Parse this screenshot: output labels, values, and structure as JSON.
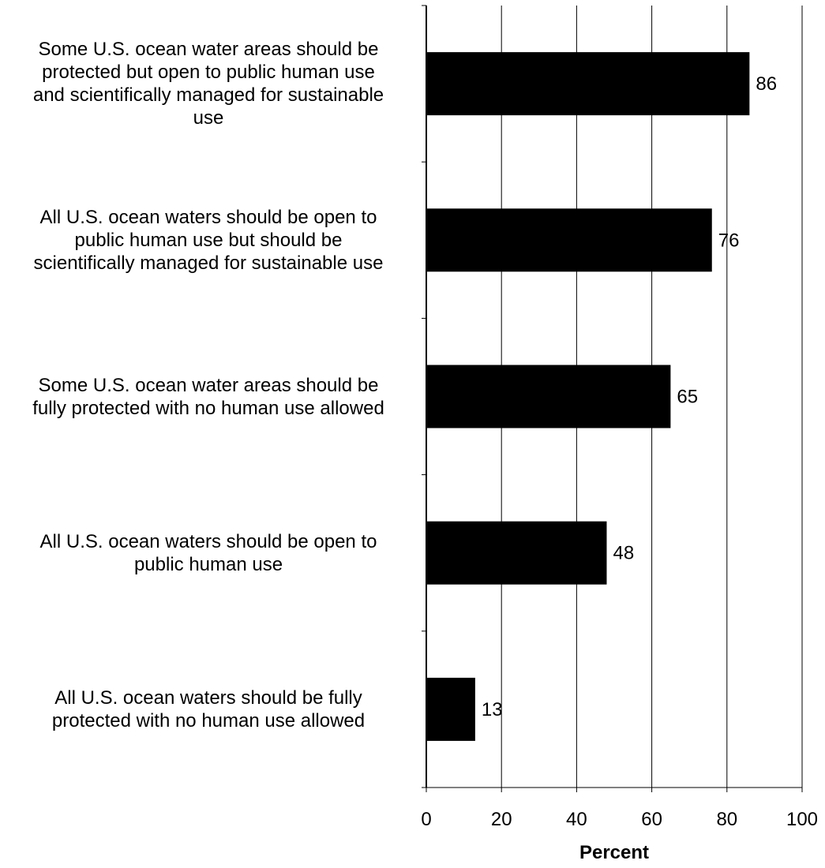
{
  "chart_data": {
    "type": "bar",
    "orientation": "horizontal",
    "categories": [
      "Some U.S. ocean water areas should be\nprotected but open to public human use\nand scientifically managed for sustainable\nuse",
      "All U.S. ocean waters should be open to\npublic human use but should be\nscientifically managed for sustainable use",
      "Some U.S. ocean water areas should be\nfully protected with no human use allowed",
      "All U.S. ocean waters should be open to\npublic human use",
      "All U.S. ocean waters should be fully\nprotected with no human use allowed"
    ],
    "values": [
      86,
      76,
      65,
      48,
      13
    ],
    "data_labels": [
      "86",
      "76",
      "65",
      "48",
      "13"
    ],
    "xlabel": "Percent",
    "ylabel": "",
    "xlim": [
      0,
      100
    ],
    "xticks": [
      0,
      20,
      40,
      60,
      80,
      100
    ],
    "xtick_labels": [
      "0",
      "20",
      "40",
      "60",
      "80",
      "100"
    ],
    "grid": "vertical",
    "legend": "none",
    "bar_color": "#000000",
    "grid_color": "#000000"
  }
}
